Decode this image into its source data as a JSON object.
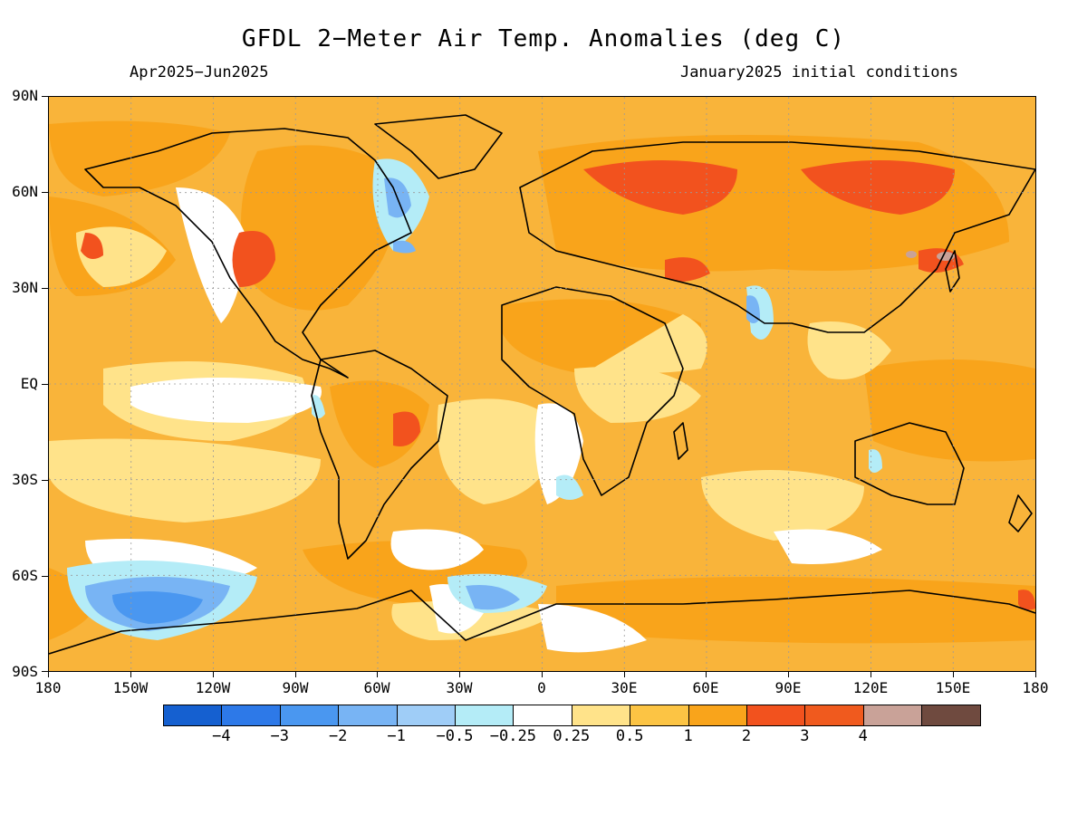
{
  "title": "GFDL 2−Meter Air Temp. Anomalies (deg C)",
  "subtitle_left": "Apr2025−Jun2025",
  "subtitle_right": "January2025 initial conditions",
  "y_axis_labels": [
    "90N",
    "60N",
    "30N",
    "EQ",
    "30S",
    "60S",
    "90S"
  ],
  "x_axis_labels": [
    "180",
    "150W",
    "120W",
    "90W",
    "60W",
    "30W",
    "0",
    "30E",
    "60E",
    "90E",
    "120E",
    "150E",
    "180"
  ],
  "colorbar": {
    "colors": [
      "#1560d0",
      "#2d79e8",
      "#4a97f0",
      "#78b4f4",
      "#9fcdf7",
      "#b4ecf7",
      "#ffffff",
      "#ffe38a",
      "#fcc444",
      "#f9a41b",
      "#f2521e",
      "#f05a1e",
      "#c9a298",
      "#6f4a3f"
    ],
    "labels": [
      "−4",
      "−3",
      "−2",
      "−1",
      "−0.5",
      "−0.25",
      "0.25",
      "0.5",
      "1",
      "2",
      "3",
      "4"
    ]
  },
  "palette": {
    "base": "#f9b43a",
    "warm": "#f9a41b",
    "hot": "#f2521e",
    "extreme": "#c9a298",
    "mild": "#ffe38a",
    "neutral": "#ffffff",
    "cool": "#b4ecf7",
    "cold": "#78b4f4",
    "colder": "#4a97f0"
  }
}
